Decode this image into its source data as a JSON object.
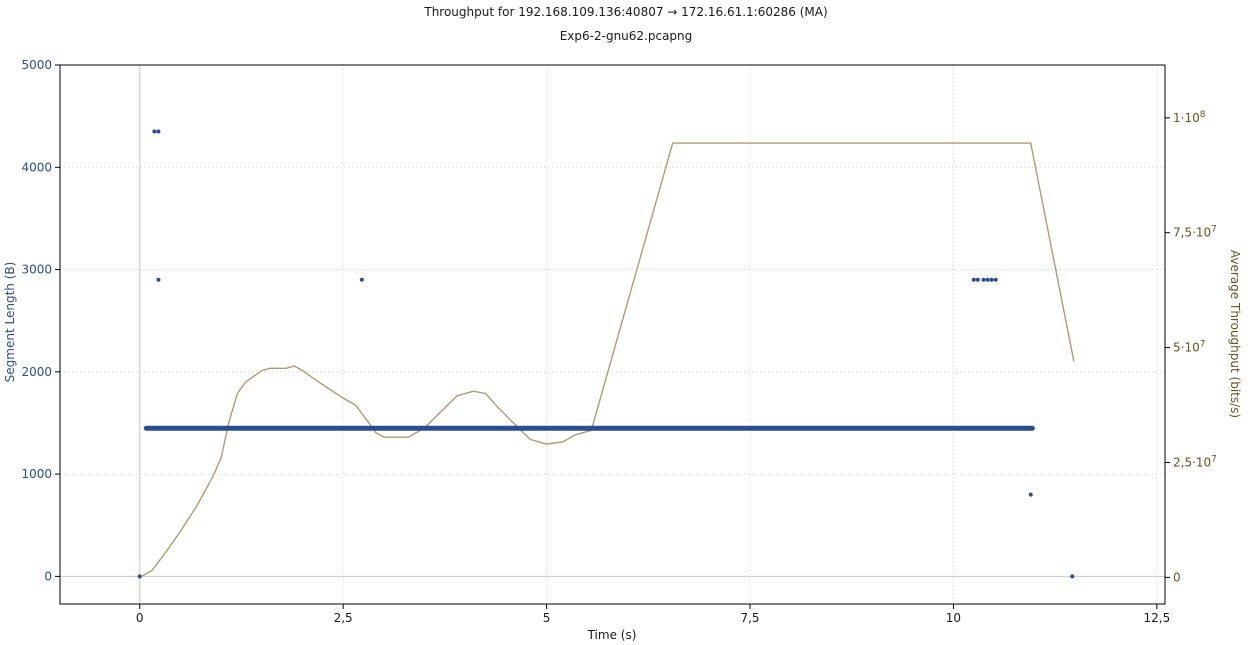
{
  "chart_data": {
    "type": "scatter+line",
    "title": "Throughput for 192.168.109.136:40807 → 172.16.61.1:60286 (MA)",
    "subtitle": "Exp6-2-gnu62.pcapng",
    "xlabel": "Time (s)",
    "ylabel_left": "Segment Length (B)",
    "ylabel_right": "Average Throughput (bits/s)",
    "xlim": [
      -0.98,
      12.6
    ],
    "ylim_left": [
      -270,
      5000
    ],
    "ylim_right": [
      -5800000,
      111500000
    ],
    "x_ticks": [
      {
        "v": 0,
        "label": "0"
      },
      {
        "v": 2.5,
        "label": "2,5"
      },
      {
        "v": 5,
        "label": "5"
      },
      {
        "v": 7.5,
        "label": "7,5"
      },
      {
        "v": 10,
        "label": "10"
      },
      {
        "v": 12.5,
        "label": "12,5"
      }
    ],
    "y_left_ticks": [
      {
        "v": 0,
        "label": "0"
      },
      {
        "v": 1000,
        "label": "1000"
      },
      {
        "v": 2000,
        "label": "2000"
      },
      {
        "v": 3000,
        "label": "3000"
      },
      {
        "v": 4000,
        "label": "4000"
      },
      {
        "v": 5000,
        "label": "5000"
      }
    ],
    "y_right_ticks": [
      {
        "v": 0,
        "mant": "0",
        "exp": ""
      },
      {
        "v": 25000000,
        "mant": "2,5·10",
        "exp": "7"
      },
      {
        "v": 50000000,
        "mant": "5·10",
        "exp": "7"
      },
      {
        "v": 75000000,
        "mant": "7,5·10",
        "exp": "7"
      },
      {
        "v": 100000000,
        "mant": "1·10",
        "exp": "8"
      }
    ],
    "grid": true,
    "colors": {
      "segments": "#2a4d8f",
      "throughput": "#b09a6e",
      "left_axis_text": "#2a4d8f",
      "right_axis_text": "#6b5220",
      "grid": "#cfcfcf",
      "zero_line": "#c8c8c8"
    },
    "segment_points": [
      [
        0.0,
        0
      ],
      [
        0.18,
        4350
      ],
      [
        0.23,
        4350
      ],
      [
        0.23,
        2900
      ],
      [
        2.73,
        2900
      ],
      [
        10.25,
        2900
      ],
      [
        10.3,
        2900
      ],
      [
        10.37,
        2900
      ],
      [
        10.42,
        2900
      ],
      [
        10.47,
        2900
      ],
      [
        10.52,
        2900
      ],
      [
        10.95,
        800
      ],
      [
        11.46,
        0
      ]
    ],
    "segment_band": {
      "x_start": 0.08,
      "x_end": 10.97,
      "y": 1448
    },
    "throughput_series": [
      [
        0.0,
        0
      ],
      [
        0.15,
        1500000
      ],
      [
        0.3,
        5000000
      ],
      [
        0.5,
        10000000
      ],
      [
        0.7,
        15500000
      ],
      [
        0.9,
        22000000
      ],
      [
        1.0,
        26000000
      ],
      [
        1.1,
        34000000
      ],
      [
        1.2,
        40000000
      ],
      [
        1.3,
        42500000
      ],
      [
        1.5,
        45000000
      ],
      [
        1.6,
        45500000
      ],
      [
        1.8,
        45500000
      ],
      [
        1.9,
        46000000
      ],
      [
        2.0,
        45000000
      ],
      [
        2.2,
        42500000
      ],
      [
        2.5,
        39000000
      ],
      [
        2.65,
        37500000
      ],
      [
        2.8,
        34000000
      ],
      [
        2.9,
        31500000
      ],
      [
        3.0,
        30500000
      ],
      [
        3.3,
        30500000
      ],
      [
        3.5,
        32500000
      ],
      [
        3.7,
        36000000
      ],
      [
        3.9,
        39500000
      ],
      [
        4.1,
        40500000
      ],
      [
        4.25,
        40000000
      ],
      [
        4.4,
        37000000
      ],
      [
        4.6,
        33500000
      ],
      [
        4.8,
        30000000
      ],
      [
        5.0,
        29000000
      ],
      [
        5.2,
        29500000
      ],
      [
        5.35,
        31000000
      ],
      [
        5.55,
        32000000
      ],
      [
        6.55,
        94500000
      ],
      [
        10.95,
        94500000
      ],
      [
        11.48,
        47000000
      ]
    ]
  }
}
